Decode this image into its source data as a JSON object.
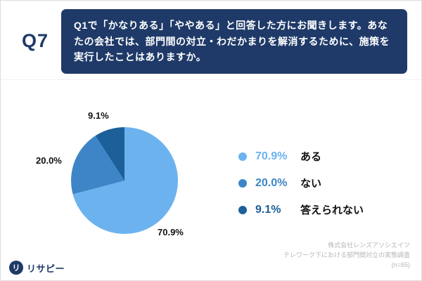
{
  "header": {
    "question_number": "Q7",
    "question_text": "Q1で「かなりある」「ややある」と回答した方にお聞きします。あなたの会社では、部門間の対立・わだかまりを解消するために、施策を実行したことはありますか。"
  },
  "chart_data": {
    "type": "pie",
    "categories": [
      "ある",
      "ない",
      "答えられない"
    ],
    "values": [
      70.9,
      20.0,
      9.1
    ],
    "value_labels": [
      "70.9%",
      "20.0%",
      "9.1%"
    ],
    "colors": [
      "#6cb2ef",
      "#3d85c6",
      "#1d5f98"
    ],
    "start_angle_deg": 0,
    "direction": "clockwise",
    "legend_position": "right"
  },
  "footer": {
    "credit_line1": "株式会社レンズアソシエイツ",
    "credit_line2": "テレワーク下における部門間対立の実態調査",
    "credit_line3": "(n=65)",
    "logo_text": "リサピー",
    "logo_mark": "リ"
  },
  "colors": {
    "navy": "#1f3a68"
  }
}
